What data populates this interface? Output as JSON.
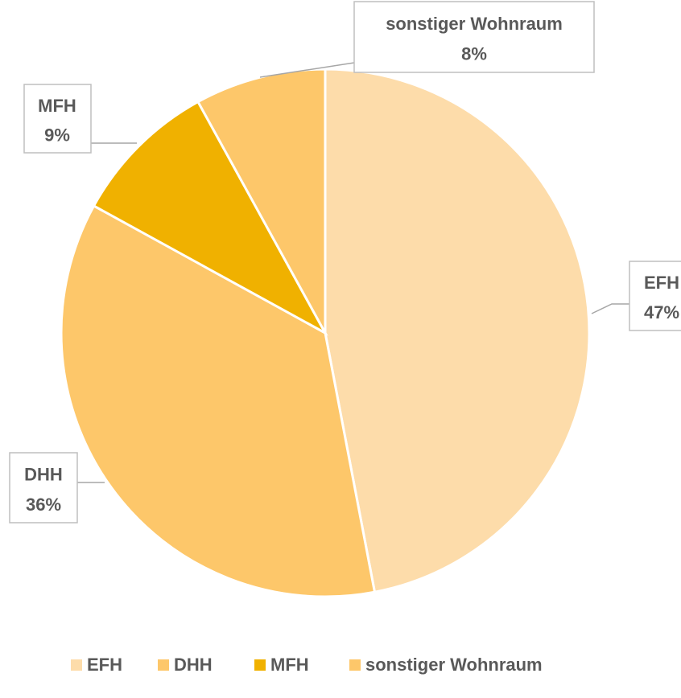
{
  "chart_data": {
    "type": "pie",
    "categories": [
      "EFH",
      "DHH",
      "MFH",
      "sonstiger Wohnraum"
    ],
    "values": [
      47,
      36,
      9,
      8
    ],
    "value_labels": [
      "47%",
      "36%",
      "9%",
      "8%"
    ],
    "colors": [
      "#fddcaa",
      "#fdc76a",
      "#f0b100",
      "#fdc76a"
    ],
    "legend": "bottom"
  }
}
